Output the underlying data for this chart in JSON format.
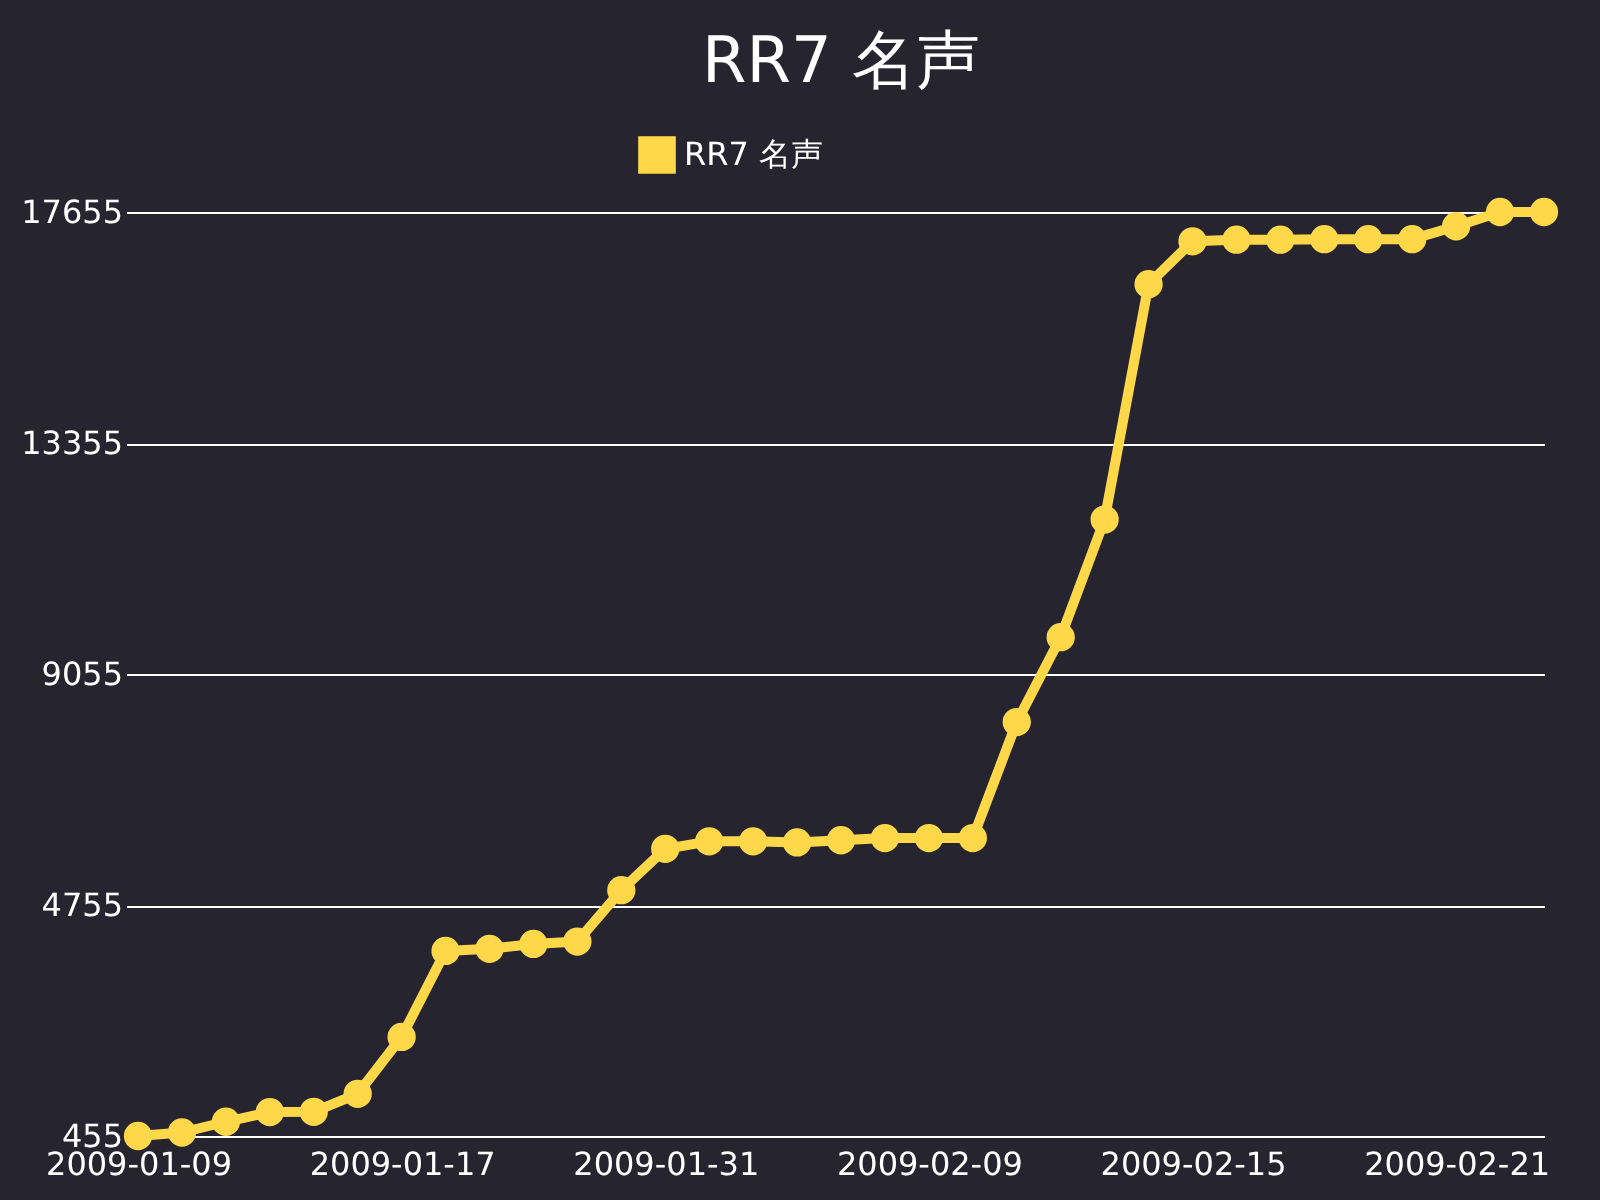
{
  "chart_data": {
    "type": "line",
    "title": "RR7 名声",
    "categories": [
      "2009-01-09",
      null,
      null,
      null,
      null,
      null,
      "2009-01-17",
      null,
      null,
      null,
      null,
      null,
      "2009-01-31",
      null,
      null,
      null,
      null,
      null,
      "2009-02-09",
      null,
      null,
      null,
      null,
      null,
      "2009-02-15",
      null,
      null,
      null,
      null,
      null,
      "2009-02-21",
      null,
      null
    ],
    "series": [
      {
        "name": "RR7 名声",
        "color": "#ffd84a",
        "values": [
          455,
          520,
          720,
          900,
          905,
          1240,
          2300,
          3900,
          3940,
          4030,
          4075,
          5030,
          5800,
          5940,
          5940,
          5920,
          5960,
          6000,
          6000,
          6000,
          8160,
          9740,
          11930,
          16310,
          17110,
          17140,
          17140,
          17150,
          17150,
          17150,
          17390,
          17655,
          17655
        ]
      }
    ],
    "ylim": [
      455,
      17655
    ],
    "yticks": [
      455,
      4755,
      9055,
      13355,
      17655
    ],
    "grid": "y",
    "legend": "top",
    "marker": "circle",
    "line_style": "solid"
  }
}
